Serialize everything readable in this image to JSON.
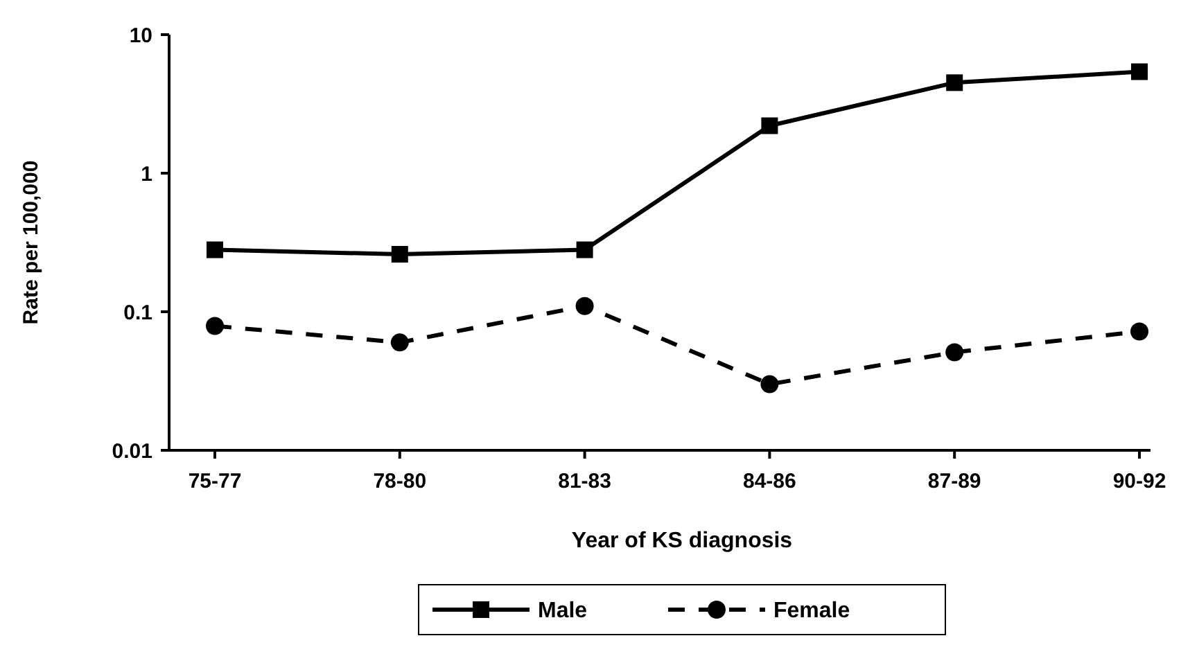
{
  "chart_data": {
    "type": "line",
    "xlabel": "Year of KS diagnosis",
    "ylabel": "Rate per 100,000",
    "categories": [
      "75-77",
      "78-80",
      "81-83",
      "84-86",
      "87-89",
      "90-92"
    ],
    "series": [
      {
        "name": "Male",
        "color": "#000000",
        "marker": "square",
        "line_style": "solid",
        "values": [
          0.28,
          0.26,
          0.28,
          2.2,
          4.5,
          5.4
        ]
      },
      {
        "name": "Female",
        "color": "#000000",
        "marker": "circle",
        "line_style": "dashed",
        "values": [
          0.079,
          0.06,
          0.11,
          0.03,
          0.051,
          0.072
        ]
      }
    ],
    "log": "y",
    "ylim": [
      0.01,
      10
    ],
    "yticks": [
      0.01,
      0.1,
      1,
      10
    ],
    "grid": false,
    "legend": "bottom"
  }
}
